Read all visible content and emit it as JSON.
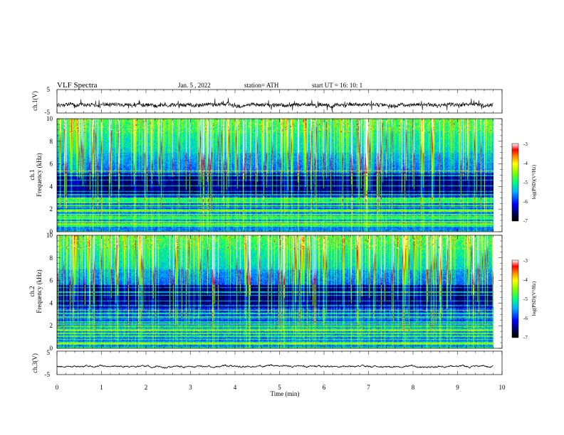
{
  "header": {
    "title": "VLF  Spectra",
    "date": "Jan. 5 , 2022",
    "station": "station= ATH",
    "start": "start  UT  =   16: 10: 1"
  },
  "chart_data": [
    {
      "type": "line",
      "name": "ch1-waveform",
      "ylabel": "ch.1(V)",
      "ylim": [
        -5,
        5
      ],
      "yticks": [
        "5",
        "-5"
      ],
      "xlim": [
        0,
        10
      ],
      "baseline": -1.5,
      "noise_amplitude": 1.5,
      "line_color": "#000000"
    },
    {
      "type": "heatmap",
      "name": "ch1-spectrogram",
      "ylabel_line1": "ch.1",
      "ylabel_line2": "Frequency  (kHz)",
      "ylim": [
        0,
        10
      ],
      "yticks": [
        "0",
        "2",
        "4",
        "6",
        "8",
        "10"
      ],
      "xlim": [
        0,
        10
      ],
      "data_end_min": 9.8,
      "colorbar": {
        "label": "log(PSD)(V²/Hz)",
        "ticks": [
          "-3",
          "-4",
          "-5",
          "-6",
          "-7"
        ],
        "range": [
          -7,
          -3
        ]
      },
      "features": {
        "hum_bands_khz": [
          0.5,
          0.7,
          0.9,
          1.2,
          1.5,
          1.9,
          2.2,
          2.6,
          3.0,
          3.3,
          3.6,
          4.1,
          4.6,
          5.0,
          5.4
        ],
        "quiet_band_khz": [
          3.2,
          5.2
        ],
        "sferic_density": "high"
      }
    },
    {
      "type": "heatmap",
      "name": "ch2-spectrogram",
      "ylabel_line1": "ch.2",
      "ylabel_line2": "Frequency  (kHz)",
      "ylim": [
        0,
        10
      ],
      "yticks": [
        "0",
        "2",
        "4",
        "6",
        "8",
        "10"
      ],
      "xlim": [
        0,
        10
      ],
      "data_end_min": 9.8,
      "colorbar": {
        "label": "log(PSD)(V²/Hz)",
        "ticks": [
          "-3",
          "-4",
          "-5",
          "-6",
          "-7"
        ],
        "range": [
          -7,
          -3
        ]
      },
      "features": {
        "hum_bands_khz": [
          0.4,
          0.8,
          1.1,
          1.6,
          2.0,
          2.4,
          2.8,
          3.1,
          3.4,
          3.8,
          4.2,
          4.7,
          5.0,
          5.4
        ],
        "quiet_band_khz": [
          3.6,
          5.6
        ],
        "sferic_density": "high"
      }
    },
    {
      "type": "line",
      "name": "ch3-waveform",
      "ylabel": "ch.3(V)",
      "ylim": [
        -5,
        5
      ],
      "yticks": [
        "5",
        "-5"
      ],
      "xlim": [
        0,
        10
      ],
      "xticks": [
        "0",
        "1",
        "2",
        "3",
        "4",
        "5",
        "6",
        "7",
        "8",
        "9",
        "10"
      ],
      "xlabel": "Time  (min)",
      "baseline": -1.5,
      "noise_amplitude": 0.15,
      "line_color": "#000000"
    }
  ]
}
